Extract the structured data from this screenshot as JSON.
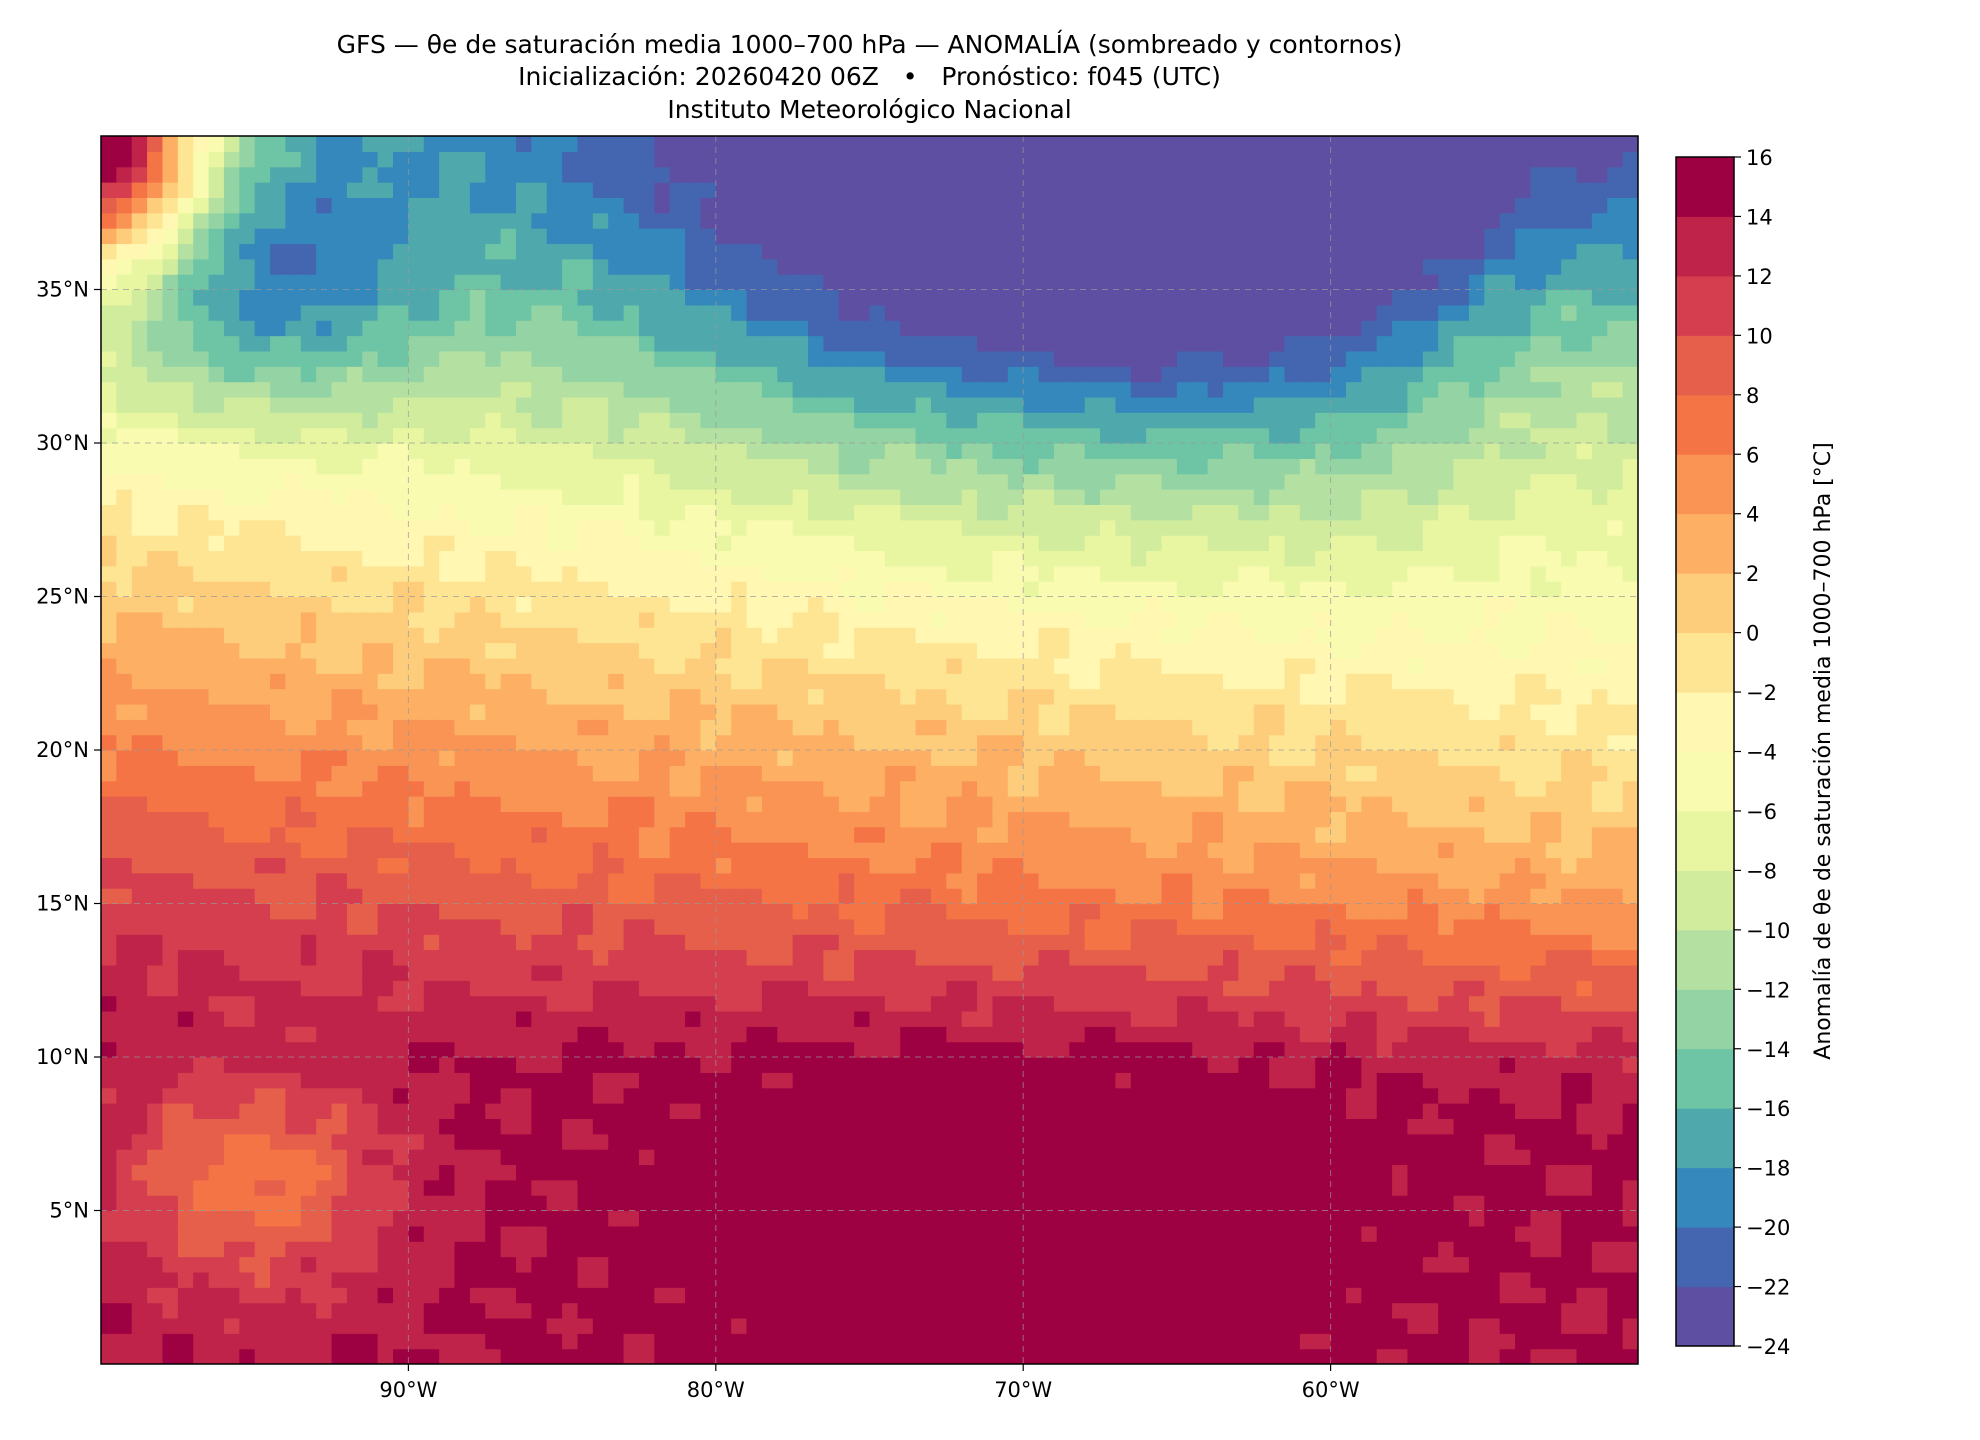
{
  "chart_data": {
    "type": "heatmap",
    "title": "GFS — θe de saturación media 1000–700 hPa — ANOMALÍA (sombreado y contornos)",
    "subtitle": "Inicialización: 20260420 06Z   •   Pronóstico: f045 (UTC)",
    "institution": "Instituto Meteorológico Nacional",
    "xlim": [
      -100,
      -50
    ],
    "ylim": [
      0,
      40
    ],
    "grid": true,
    "x_ticks": [
      {
        "value": -90,
        "label": "90°W"
      },
      {
        "value": -80,
        "label": "80°W"
      },
      {
        "value": -70,
        "label": "70°W"
      },
      {
        "value": -60,
        "label": "60°W"
      }
    ],
    "y_ticks": [
      {
        "value": 35,
        "label": "35°N"
      },
      {
        "value": 30,
        "label": "30°N"
      },
      {
        "value": 25,
        "label": "25°N"
      },
      {
        "value": 20,
        "label": "20°N"
      },
      {
        "value": 15,
        "label": "15°N"
      },
      {
        "value": 10,
        "label": "10°N"
      },
      {
        "value": 5,
        "label": "5°N"
      }
    ],
    "colorbar": {
      "label": "Anomalía de θe de saturación media 1000–700 hPa [°C]",
      "levels": [
        -24,
        -22,
        -20,
        -18,
        -16,
        -14,
        -12,
        -10,
        -8,
        -6,
        -4,
        -2,
        0,
        2,
        4,
        6,
        8,
        10,
        12,
        14,
        16
      ],
      "tick_labels": [
        "−24",
        "−22",
        "−20",
        "−18",
        "−16",
        "−14",
        "−12",
        "−10",
        "−8",
        "−6",
        "−4",
        "−2",
        "0",
        "2",
        "4",
        "6",
        "8",
        "10",
        "12",
        "14",
        "16"
      ],
      "colors": [
        "#5e4fa2",
        "#4466b1",
        "#3488bc",
        "#4fa8ac",
        "#6dc5a5",
        "#94d4a4",
        "#b4e0a2",
        "#d1ec9c",
        "#e9f6a1",
        "#f8fbb0",
        "#fff7b2",
        "#fee593",
        "#fdcd7b",
        "#fdb063",
        "#f99455",
        "#f57446",
        "#e65f4a",
        "#d53e4f",
        "#c0234a",
        "#9e0142"
      ]
    },
    "field_model": {
      "base_value_at_10N": 14,
      "lat_gradient_per_deg_north_of_10N": -1.0,
      "lon_gradient_per_deg_east_of_85W": -0.15,
      "anomalies": [
        {
          "lon": -68,
          "lat": 37,
          "amp": -15,
          "sig_lon": 11,
          "sig_lat": 5.5
        },
        {
          "lon": -95,
          "lat": 35,
          "amp": -10,
          "sig_lon": 4,
          "sig_lat": 3
        },
        {
          "lon": -100,
          "lat": 40,
          "amp": 32,
          "sig_lon": 2.5,
          "sig_lat": 3
        },
        {
          "lon": -95,
          "lat": 6,
          "amp": -7,
          "sig_lon": 3,
          "sig_lat": 2.5
        },
        {
          "lon": -70,
          "lat": 5,
          "amp": 3,
          "sig_lon": 8,
          "sig_lat": 4
        },
        {
          "lon": -52,
          "lat": 33,
          "amp": 5,
          "sig_lon": 4,
          "sig_lat": 5
        }
      ]
    }
  }
}
